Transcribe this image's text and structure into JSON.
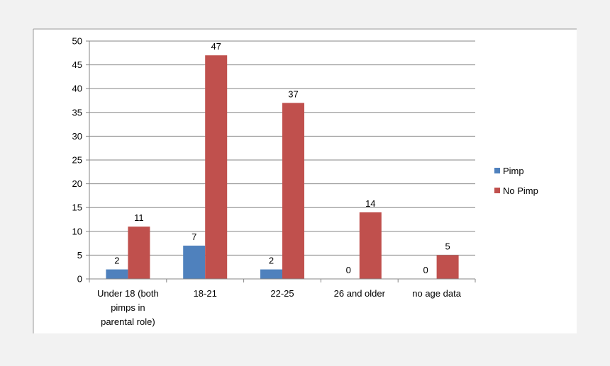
{
  "chart_data": {
    "type": "bar",
    "categories": [
      [
        "Under 18 (both",
        "pimps in",
        "parental role)"
      ],
      [
        "18-21"
      ],
      [
        "22-25"
      ],
      [
        "26 and older"
      ],
      [
        "no age data"
      ]
    ],
    "series": [
      {
        "name": "Pimp",
        "color": "#4f81bd",
        "values": [
          2,
          7,
          2,
          0,
          0
        ]
      },
      {
        "name": "No Pimp",
        "color": "#c0504d",
        "values": [
          11,
          47,
          37,
          14,
          5
        ]
      }
    ],
    "ylim": [
      0,
      50
    ],
    "yticks": [
      0,
      5,
      10,
      15,
      20,
      25,
      30,
      35,
      40,
      45,
      50
    ],
    "grid": true,
    "legend": "right",
    "data_labels": true
  }
}
